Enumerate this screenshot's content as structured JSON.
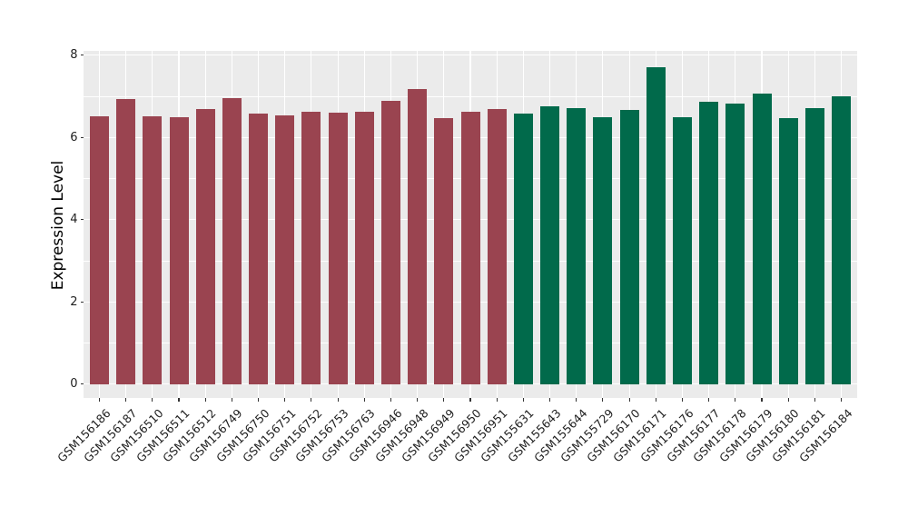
{
  "chart_data": {
    "type": "bar",
    "title": "",
    "xlabel": "",
    "ylabel": "Expression Level",
    "ylim": [
      0,
      8.45
    ],
    "yticks": [
      0,
      2,
      4,
      6,
      8
    ],
    "yticks_minor": [
      1,
      3,
      5,
      7
    ],
    "grid": true,
    "legend": false,
    "panel_background": "#EBEBEB",
    "grid_color": "#FFFFFF",
    "tick_color": "#333333",
    "categories": [
      "GSM156186",
      "GSM156187",
      "GSM156510",
      "GSM156511",
      "GSM156512",
      "GSM156749",
      "GSM156750",
      "GSM156751",
      "GSM156752",
      "GSM156753",
      "GSM156763",
      "GSM156946",
      "GSM156948",
      "GSM156949",
      "GSM156950",
      "GSM156951",
      "GSM155631",
      "GSM155643",
      "GSM155644",
      "GSM155729",
      "GSM156170",
      "GSM156171",
      "GSM156176",
      "GSM156177",
      "GSM156178",
      "GSM156179",
      "GSM156180",
      "GSM156181",
      "GSM156184"
    ],
    "values": [
      6.51,
      6.94,
      6.51,
      6.5,
      6.68,
      6.96,
      6.59,
      6.54,
      6.62,
      6.6,
      6.62,
      6.9,
      7.18,
      6.48,
      6.62,
      6.69,
      6.58,
      6.76,
      6.72,
      6.5,
      6.67,
      7.71,
      6.49,
      6.86,
      6.82,
      7.06,
      6.47,
      6.71,
      7.0
    ],
    "bar_groups": [
      "g1",
      "g1",
      "g1",
      "g1",
      "g1",
      "g1",
      "g1",
      "g1",
      "g1",
      "g1",
      "g1",
      "g1",
      "g1",
      "g1",
      "g1",
      "g1",
      "g2",
      "g2",
      "g2",
      "g2",
      "g2",
      "g2",
      "g2",
      "g2",
      "g2",
      "g2",
      "g2",
      "g2",
      "g2"
    ],
    "group_colors": {
      "g1": "#9A4450",
      "g2": "#016A4B"
    }
  }
}
